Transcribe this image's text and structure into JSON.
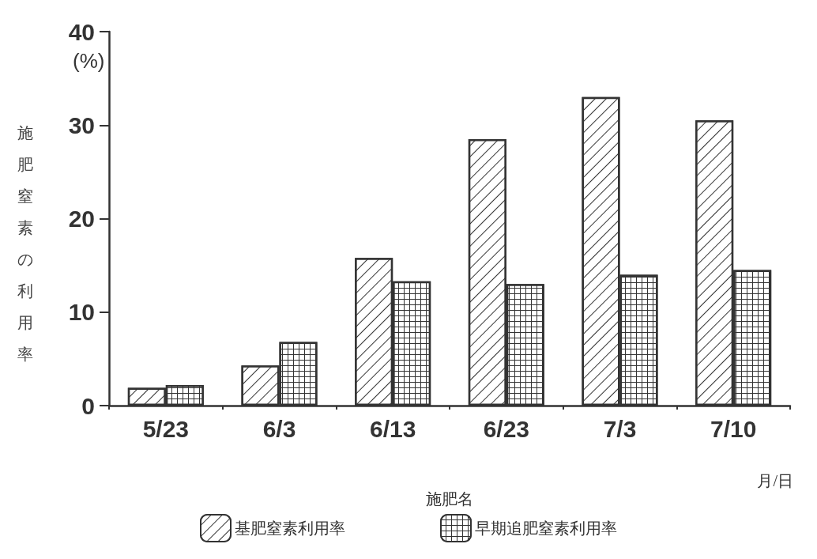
{
  "chart_data": {
    "type": "bar",
    "xlabel": "施肥名",
    "ylabel": "施肥窒素の利用率",
    "categories": [
      "5/23",
      "6/3",
      "6/13",
      "6/23",
      "7/3",
      "7/10"
    ],
    "series": [
      {
        "name": "基肥窒素利用率",
        "color": "#333333",
        "values": [
          1.9,
          4.3,
          15.8,
          28.5,
          33,
          30.5
        ]
      },
      {
        "name": "早期追肥窒素利用率",
        "color": "#333333",
        "values": [
          2.2,
          6.8,
          13.3,
          13,
          14,
          14.5
        ]
      }
    ],
    "ylim": [
      0,
      40
    ],
    "yticks": [
      0,
      10,
      20,
      30,
      40
    ],
    "grid": false,
    "legend": "bottom",
    "annotations": [
      "(%)",
      "月/日"
    ]
  }
}
